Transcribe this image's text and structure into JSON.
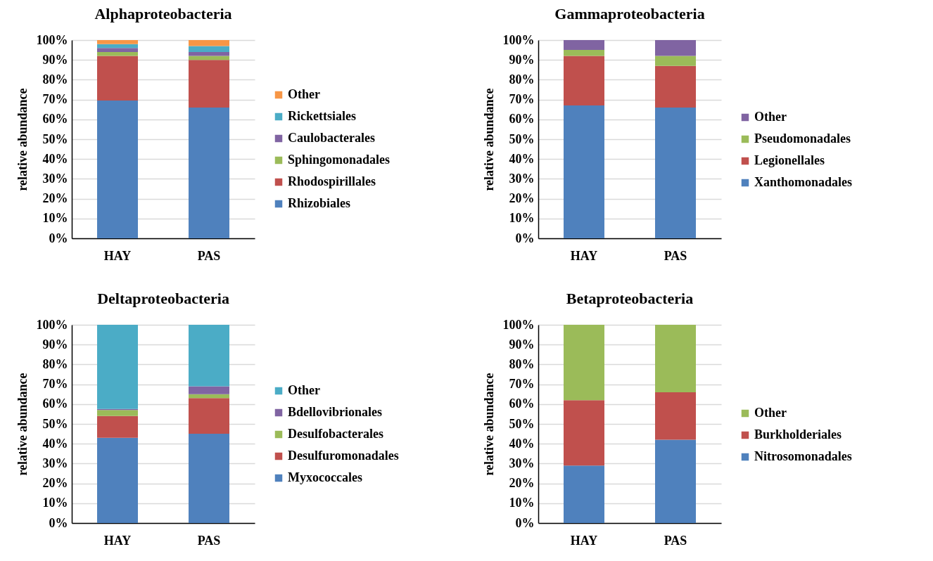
{
  "chart_data": [
    {
      "type": "bar",
      "title": "Alphaproteobacteria",
      "ylabel": "relative abundance",
      "categories": [
        "HAY",
        "PAS"
      ],
      "stacked": true,
      "legend": "right",
      "grid": "y",
      "ylim": [
        0,
        100
      ],
      "yticks": [
        {
          "value": 0,
          "label": "0%"
        },
        {
          "value": 10,
          "label": "10%"
        },
        {
          "value": 20,
          "label": "20%"
        },
        {
          "value": 30,
          "label": "30%"
        },
        {
          "value": 40,
          "label": "40%"
        },
        {
          "value": 50,
          "label": "50%"
        },
        {
          "value": 60,
          "label": "60%"
        },
        {
          "value": 70,
          "label": "70%"
        },
        {
          "value": 80,
          "label": "80%"
        },
        {
          "value": 90,
          "label": "90%"
        },
        {
          "value": 100,
          "label": "100%"
        }
      ],
      "series": [
        {
          "name": "Rhizobiales",
          "color": "#4f81bd",
          "values": [
            69.5,
            66
          ]
        },
        {
          "name": "Rhodospirillales",
          "color": "#c0504d",
          "values": [
            22.5,
            24
          ]
        },
        {
          "name": "Sphingomonadales",
          "color": "#9bbb59",
          "values": [
            2,
            2
          ]
        },
        {
          "name": "Caulobacterales",
          "color": "#8064a2",
          "values": [
            2,
            2
          ]
        },
        {
          "name": "Rickettsiales",
          "color": "#4bacc6",
          "values": [
            2,
            3
          ]
        },
        {
          "name": "Other",
          "color": "#f79646",
          "values": [
            2,
            3
          ]
        }
      ]
    },
    {
      "type": "bar",
      "title": "Gammaproteobacteria",
      "ylabel": "relative abundance",
      "categories": [
        "HAY",
        "PAS"
      ],
      "stacked": true,
      "legend": "right",
      "grid": "y",
      "ylim": [
        0,
        100
      ],
      "yticks": [
        {
          "value": 0,
          "label": "0%"
        },
        {
          "value": 10,
          "label": "10%"
        },
        {
          "value": 20,
          "label": "20%"
        },
        {
          "value": 30,
          "label": "30%"
        },
        {
          "value": 40,
          "label": "40%"
        },
        {
          "value": 50,
          "label": "50%"
        },
        {
          "value": 60,
          "label": "60%"
        },
        {
          "value": 70,
          "label": "70%"
        },
        {
          "value": 80,
          "label": "80%"
        },
        {
          "value": 90,
          "label": "90%"
        },
        {
          "value": 100,
          "label": "100%"
        }
      ],
      "series": [
        {
          "name": "Xanthomonadales",
          "color": "#4f81bd",
          "values": [
            67,
            66
          ]
        },
        {
          "name": "Legionellales",
          "color": "#c0504d",
          "values": [
            25,
            21
          ]
        },
        {
          "name": "Pseudomonadales",
          "color": "#9bbb59",
          "values": [
            3,
            5
          ]
        },
        {
          "name": "Other",
          "color": "#8064a2",
          "values": [
            5,
            8
          ]
        }
      ]
    },
    {
      "type": "bar",
      "title": "Deltaproteobacteria",
      "ylabel": "relative abundance",
      "categories": [
        "HAY",
        "PAS"
      ],
      "stacked": true,
      "legend": "right",
      "grid": "y",
      "ylim": [
        0,
        100
      ],
      "yticks": [
        {
          "value": 0,
          "label": "0%"
        },
        {
          "value": 10,
          "label": "10%"
        },
        {
          "value": 20,
          "label": "20%"
        },
        {
          "value": 30,
          "label": "30%"
        },
        {
          "value": 40,
          "label": "40%"
        },
        {
          "value": 50,
          "label": "50%"
        },
        {
          "value": 60,
          "label": "60%"
        },
        {
          "value": 70,
          "label": "70%"
        },
        {
          "value": 80,
          "label": "80%"
        },
        {
          "value": 90,
          "label": "90%"
        },
        {
          "value": 100,
          "label": "100%"
        }
      ],
      "series": [
        {
          "name": "Myxococcales",
          "color": "#4f81bd",
          "values": [
            43,
            45
          ]
        },
        {
          "name": "Desulfuromonadales",
          "color": "#c0504d",
          "values": [
            11,
            18
          ]
        },
        {
          "name": "Desulfobacterales",
          "color": "#9bbb59",
          "values": [
            3,
            2
          ]
        },
        {
          "name": "Bdellovibrionales",
          "color": "#8064a2",
          "values": [
            0.5,
            4
          ]
        },
        {
          "name": "Other",
          "color": "#4bacc6",
          "values": [
            42.5,
            31
          ]
        }
      ]
    },
    {
      "type": "bar",
      "title": "Betaproteobacteria",
      "ylabel": "relative abundance",
      "categories": [
        "HAY",
        "PAS"
      ],
      "stacked": true,
      "legend": "right",
      "grid": "y",
      "ylim": [
        0,
        100
      ],
      "yticks": [
        {
          "value": 0,
          "label": "0%"
        },
        {
          "value": 10,
          "label": "10%"
        },
        {
          "value": 20,
          "label": "20%"
        },
        {
          "value": 30,
          "label": "30%"
        },
        {
          "value": 40,
          "label": "40%"
        },
        {
          "value": 50,
          "label": "50%"
        },
        {
          "value": 60,
          "label": "60%"
        },
        {
          "value": 70,
          "label": "70%"
        },
        {
          "value": 80,
          "label": "80%"
        },
        {
          "value": 90,
          "label": "90%"
        },
        {
          "value": 100,
          "label": "100%"
        }
      ],
      "series": [
        {
          "name": "Nitrosomonadales",
          "color": "#4f81bd",
          "values": [
            29,
            42
          ]
        },
        {
          "name": "Burkholderiales",
          "color": "#c0504d",
          "values": [
            33,
            24
          ]
        },
        {
          "name": "Other",
          "color": "#9bbb59",
          "values": [
            38,
            34
          ]
        }
      ]
    }
  ]
}
